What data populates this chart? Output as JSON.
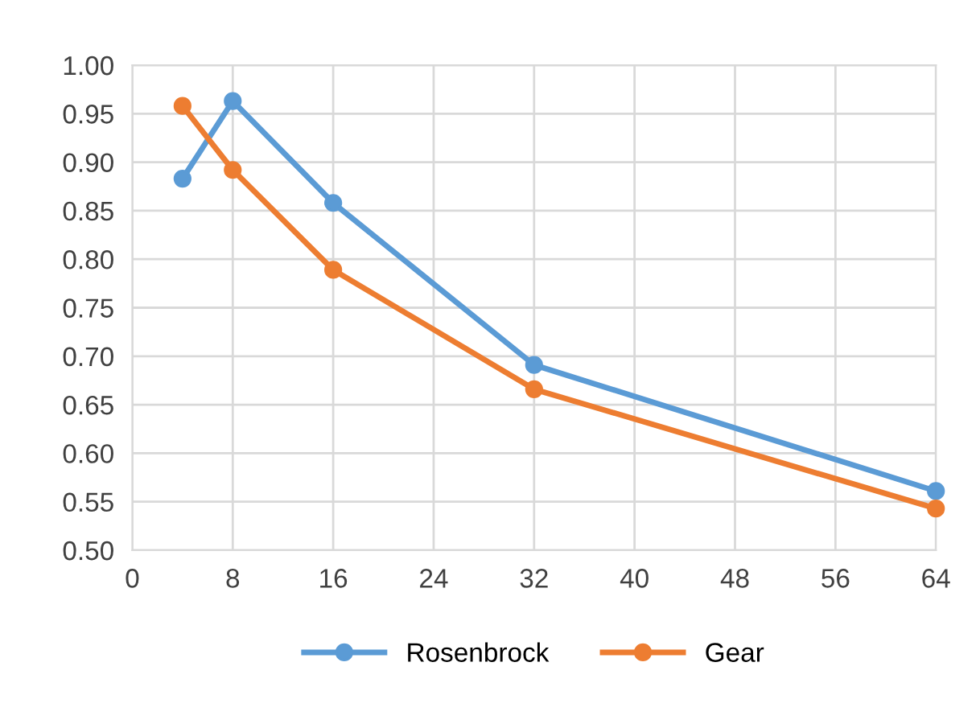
{
  "chart_data": {
    "type": "line",
    "x": [
      4,
      8,
      16,
      32,
      64
    ],
    "series": [
      {
        "name": "Rosenbrock",
        "color": "#5b9bd5",
        "values": [
          0.883,
          0.963,
          0.858,
          0.691,
          0.561
        ]
      },
      {
        "name": "Gear",
        "color": "#ed7d31",
        "values": [
          0.958,
          0.892,
          0.789,
          0.666,
          0.543
        ]
      }
    ],
    "xlim": [
      0,
      64
    ],
    "xticks": [
      0,
      8,
      16,
      24,
      32,
      40,
      48,
      56,
      64
    ],
    "ylim": [
      0.5,
      1.0
    ],
    "yticks": [
      {
        "value": 0.5,
        "label": "0.50"
      },
      {
        "value": 0.55,
        "label": "0.55"
      },
      {
        "value": 0.6,
        "label": "0.60"
      },
      {
        "value": 0.65,
        "label": "0.65"
      },
      {
        "value": 0.7,
        "label": "0.70"
      },
      {
        "value": 0.75,
        "label": "0.75"
      },
      {
        "value": 0.8,
        "label": "0.80"
      },
      {
        "value": 0.85,
        "label": "0.85"
      },
      {
        "value": 0.9,
        "label": "0.90"
      },
      {
        "value": 0.95,
        "label": "0.95"
      },
      {
        "value": 1.0,
        "label": "1.00"
      }
    ],
    "grid": true,
    "legend": "bottom",
    "marker": "circle",
    "line_style": "solid"
  }
}
